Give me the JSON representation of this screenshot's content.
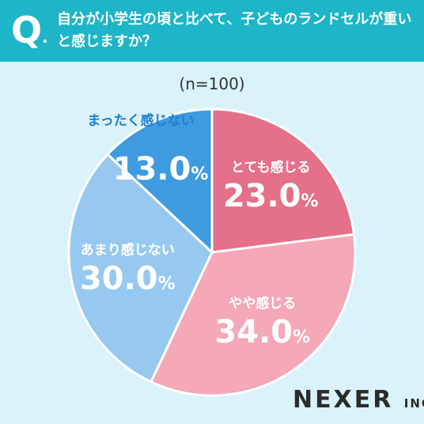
{
  "header": {
    "q_mark": "Q",
    "question": "自分が小学生の頃と比べて、子どものランドセルが重いと感じますか？"
  },
  "sample_size": "(n=100)",
  "logo": {
    "name": "NEXER",
    "suffix": "INC."
  },
  "chart_data": {
    "type": "pie",
    "start": "top",
    "direction": "clockwise",
    "slices": [
      {
        "label": "とても感じる",
        "value": 23.0,
        "value_label": "23.0%",
        "color": "#e4708a"
      },
      {
        "label": "やや感じる",
        "value": 34.0,
        "value_label": "34.0%",
        "color": "#f4a8b8"
      },
      {
        "label": "あまり感じない",
        "value": 30.0,
        "value_label": "30.0%",
        "color": "#97c9f0"
      },
      {
        "label": "まったく感じない",
        "value": 13.0,
        "value_label": "13.0%",
        "color": "#3f9be0"
      }
    ],
    "label_color_on_dark": "#ffffff",
    "label_color_light": "#1a7fcc"
  }
}
